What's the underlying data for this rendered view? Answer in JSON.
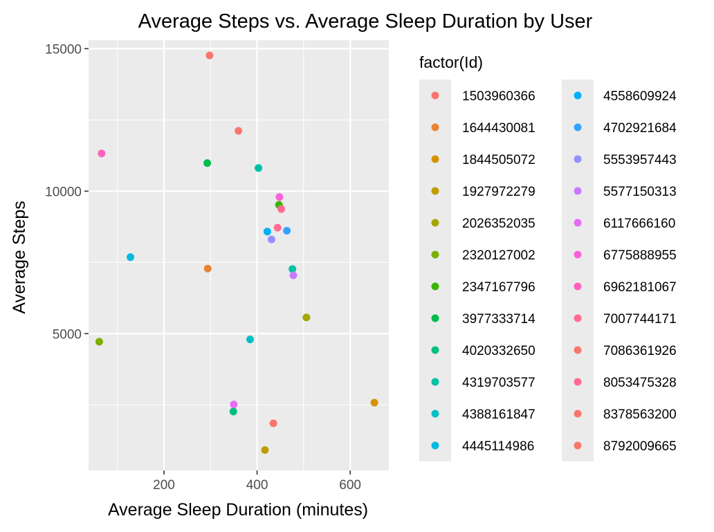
{
  "chart_data": {
    "type": "scatter",
    "title": "Average Steps vs. Average Sleep Duration by User",
    "xlabel": "Average Sleep Duration (minutes)",
    "ylabel": "Average Steps",
    "xlim": [
      38,
      683
    ],
    "ylim": [
      200,
      15300
    ],
    "x_ticks": [
      200,
      400,
      600
    ],
    "y_ticks": [
      5000,
      10000,
      15000
    ],
    "grid": true,
    "legend_title": "factor(Id)",
    "legend_position": "right",
    "series": [
      {
        "name": "1503960366",
        "color": "#F8766D",
        "points": [
          {
            "x": 360,
            "y": 12116
          }
        ]
      },
      {
        "name": "1644430081",
        "color": "#EA8331",
        "points": [
          {
            "x": 294,
            "y": 7283
          }
        ]
      },
      {
        "name": "1844505072",
        "color": "#D89000",
        "points": [
          {
            "x": 652,
            "y": 2580
          }
        ]
      },
      {
        "name": "1927972279",
        "color": "#C09B00",
        "points": [
          {
            "x": 417,
            "y": 916
          }
        ]
      },
      {
        "name": "2026352035",
        "color": "#A3A500",
        "points": [
          {
            "x": 506,
            "y": 5567
          }
        ]
      },
      {
        "name": "2320127002",
        "color": "#7CAE00",
        "points": [
          {
            "x": 61,
            "y": 4717
          }
        ]
      },
      {
        "name": "2347167796",
        "color": "#39B600",
        "points": [
          {
            "x": 447,
            "y": 9520
          }
        ]
      },
      {
        "name": "3977333714",
        "color": "#00BB4E",
        "points": [
          {
            "x": 293,
            "y": 10985
          }
        ]
      },
      {
        "name": "4020332650",
        "color": "#00BF7D",
        "points": [
          {
            "x": 349,
            "y": 2268
          }
        ]
      },
      {
        "name": "4319703577",
        "color": "#00C1A3",
        "points": [
          {
            "x": 403,
            "y": 10813
          },
          {
            "x": 476,
            "y": 7268
          }
        ]
      },
      {
        "name": "4388161847",
        "color": "#00BFC4",
        "points": [
          {
            "x": 385,
            "y": 4797
          }
        ]
      },
      {
        "name": "4445114986",
        "color": "#00BAE0",
        "points": [
          {
            "x": 128,
            "y": 7685
          }
        ]
      },
      {
        "name": "4558609924",
        "color": "#00B0F6",
        "points": [
          {
            "x": 422,
            "y": 8581
          }
        ]
      },
      {
        "name": "4702921684",
        "color": "#35A2FF",
        "points": [
          {
            "x": 464,
            "y": 8613
          }
        ]
      },
      {
        "name": "5553957443",
        "color": "#9590FF",
        "points": [
          {
            "x": 431,
            "y": 8305
          }
        ]
      },
      {
        "name": "5577150313",
        "color": "#C77CFF",
        "points": [
          {
            "x": 478,
            "y": 7047
          }
        ]
      },
      {
        "name": "6117666160",
        "color": "#E76BF3",
        "points": [
          {
            "x": 350,
            "y": 2515
          }
        ]
      },
      {
        "name": "6775888955",
        "color": "#FA62DB",
        "points": [
          {
            "x": 448,
            "y": 9794
          }
        ]
      },
      {
        "name": "6962181067",
        "color": "#FF62BC",
        "points": [
          {
            "x": 66,
            "y": 11323
          }
        ]
      },
      {
        "name": "7007744171",
        "color": "#FF6C91",
        "points": [
          {
            "x": 452,
            "y": 9372
          }
        ]
      },
      {
        "name": "7086361926",
        "color": "#F8766D",
        "points": [
          {
            "x": 298,
            "y": 14763
          }
        ]
      },
      {
        "name": "8053475328",
        "color": "#FF6C91",
        "points": [
          {
            "x": 444,
            "y": 8717
          }
        ]
      },
      {
        "name": "8378563200",
        "color": "#F8766D",
        "points": [
          {
            "x": 435,
            "y": 1854
          }
        ]
      },
      {
        "name": "8792009665",
        "color": "#F8766D",
        "points": []
      }
    ]
  }
}
